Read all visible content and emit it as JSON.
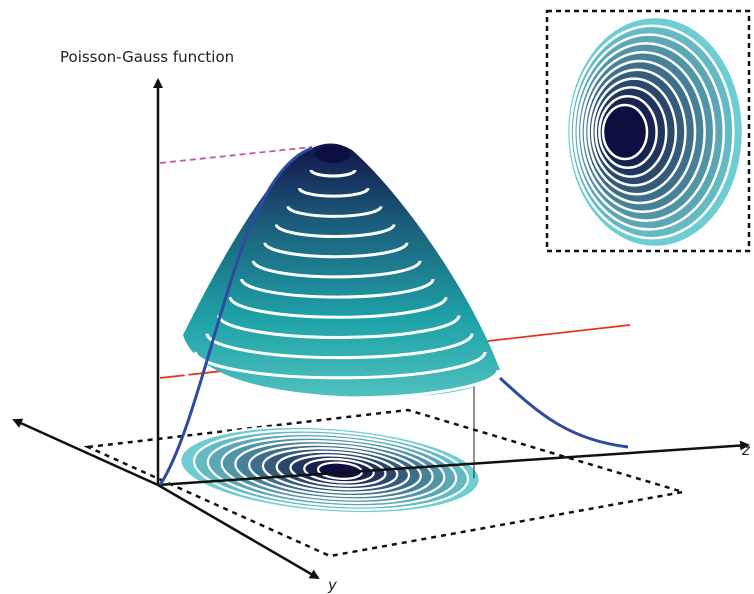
{
  "title": "Poisson-Gauss function",
  "axes": {
    "z": "z",
    "y": "y"
  }
}
